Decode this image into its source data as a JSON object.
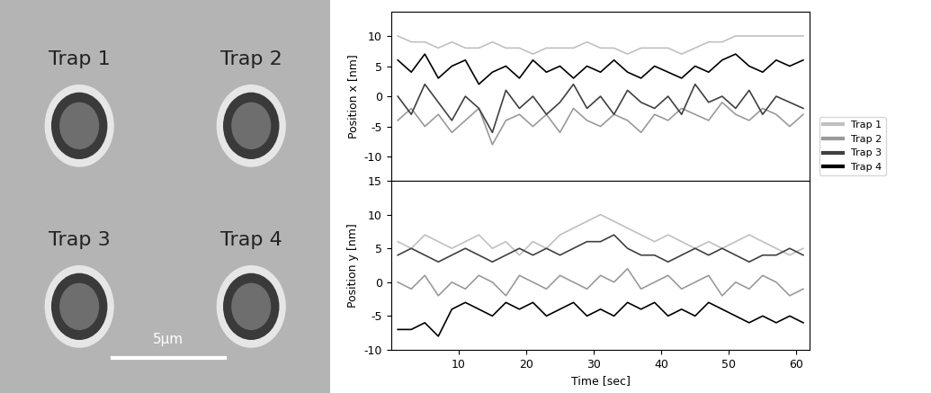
{
  "image": {
    "labels": [
      "Trap 1",
      "Trap 2",
      "Trap 3",
      "Trap 4"
    ],
    "scale_bar": "5μm"
  },
  "chart_data": [
    {
      "type": "line",
      "y_label": "Position x [nm]",
      "legend": "lower right",
      "tick_labels": "y",
      "x": [
        1,
        3,
        5,
        7,
        9,
        11,
        13,
        15,
        17,
        19,
        21,
        23,
        25,
        27,
        29,
        31,
        33,
        35,
        37,
        39,
        41,
        43,
        45,
        47,
        49,
        51,
        53,
        55,
        57,
        59,
        61
      ],
      "xlim": [
        0,
        62
      ],
      "xticks": [
        10,
        20,
        30,
        40,
        50,
        60
      ],
      "ylim": [
        -14,
        14
      ],
      "yticks": [
        -10,
        -5,
        0,
        5,
        10
      ],
      "series": [
        {
          "name": "Trap 1",
          "color": "#c0c0c0",
          "values": [
            10,
            9,
            9,
            8,
            9,
            8,
            8,
            9,
            8,
            8,
            7,
            8,
            8,
            8,
            9,
            8,
            8,
            7,
            8,
            8,
            8,
            7,
            8,
            9,
            9,
            10,
            10,
            10,
            10,
            10,
            10
          ]
        },
        {
          "name": "Trap 2",
          "color": "#9a9a9a",
          "values": [
            -4,
            -2,
            -5,
            -3,
            -6,
            -4,
            -2,
            -8,
            -4,
            -3,
            -5,
            -3,
            -6,
            -2,
            -4,
            -5,
            -3,
            -4,
            -6,
            -3,
            -4,
            -2,
            -3,
            -4,
            -1,
            -3,
            -4,
            -2,
            -3,
            -5,
            -3
          ]
        },
        {
          "name": "Trap 3",
          "color": "#404040",
          "values": [
            0,
            -3,
            2,
            -1,
            -4,
            0,
            -2,
            -6,
            1,
            -2,
            0,
            -3,
            -1,
            2,
            -2,
            0,
            -3,
            1,
            -1,
            -2,
            0,
            -3,
            2,
            -1,
            0,
            -2,
            1,
            -3,
            0,
            -1,
            -2
          ]
        },
        {
          "name": "Trap 4",
          "color": "#000000",
          "values": [
            6,
            4,
            7,
            3,
            5,
            6,
            2,
            4,
            5,
            3,
            6,
            4,
            5,
            3,
            5,
            4,
            6,
            4,
            3,
            5,
            4,
            3,
            5,
            4,
            6,
            7,
            5,
            4,
            6,
            5,
            6
          ]
        }
      ]
    },
    {
      "type": "line",
      "x_label": "Time [sec]",
      "y_label": "Position y [nm]",
      "x": [
        1,
        3,
        5,
        7,
        9,
        11,
        13,
        15,
        17,
        19,
        21,
        23,
        25,
        27,
        29,
        31,
        33,
        35,
        37,
        39,
        41,
        43,
        45,
        47,
        49,
        51,
        53,
        55,
        57,
        59,
        61
      ],
      "xlim": [
        0,
        62
      ],
      "xticks": [
        10,
        20,
        30,
        40,
        50,
        60
      ],
      "ylim": [
        -10,
        15
      ],
      "yticks": [
        -10,
        -5,
        0,
        5,
        10,
        15
      ],
      "series": [
        {
          "name": "Trap 1",
          "color": "#c0c0c0",
          "values": [
            6,
            5,
            7,
            6,
            5,
            6,
            7,
            5,
            6,
            4,
            6,
            5,
            7,
            8,
            9,
            10,
            9,
            8,
            7,
            6,
            7,
            6,
            5,
            6,
            5,
            6,
            7,
            6,
            5,
            4,
            5
          ]
        },
        {
          "name": "Trap 2",
          "color": "#9a9a9a",
          "values": [
            0,
            -1,
            1,
            -2,
            0,
            -1,
            1,
            0,
            -2,
            1,
            0,
            -1,
            1,
            0,
            -1,
            1,
            0,
            2,
            -1,
            0,
            1,
            -1,
            0,
            1,
            -2,
            0,
            -1,
            1,
            0,
            -2,
            -1
          ]
        },
        {
          "name": "Trap 3",
          "color": "#404040",
          "values": [
            4,
            5,
            4,
            3,
            4,
            5,
            4,
            3,
            4,
            5,
            4,
            5,
            4,
            5,
            6,
            6,
            7,
            5,
            4,
            4,
            3,
            4,
            5,
            4,
            5,
            4,
            3,
            4,
            4,
            5,
            4
          ]
        },
        {
          "name": "Trap 4",
          "color": "#000000",
          "values": [
            -7,
            -7,
            -6,
            -8,
            -4,
            -3,
            -4,
            -5,
            -3,
            -4,
            -3,
            -5,
            -4,
            -3,
            -5,
            -4,
            -5,
            -3,
            -4,
            -3,
            -5,
            -4,
            -5,
            -3,
            -4,
            -5,
            -6,
            -5,
            -6,
            -5,
            -6
          ]
        }
      ]
    }
  ]
}
